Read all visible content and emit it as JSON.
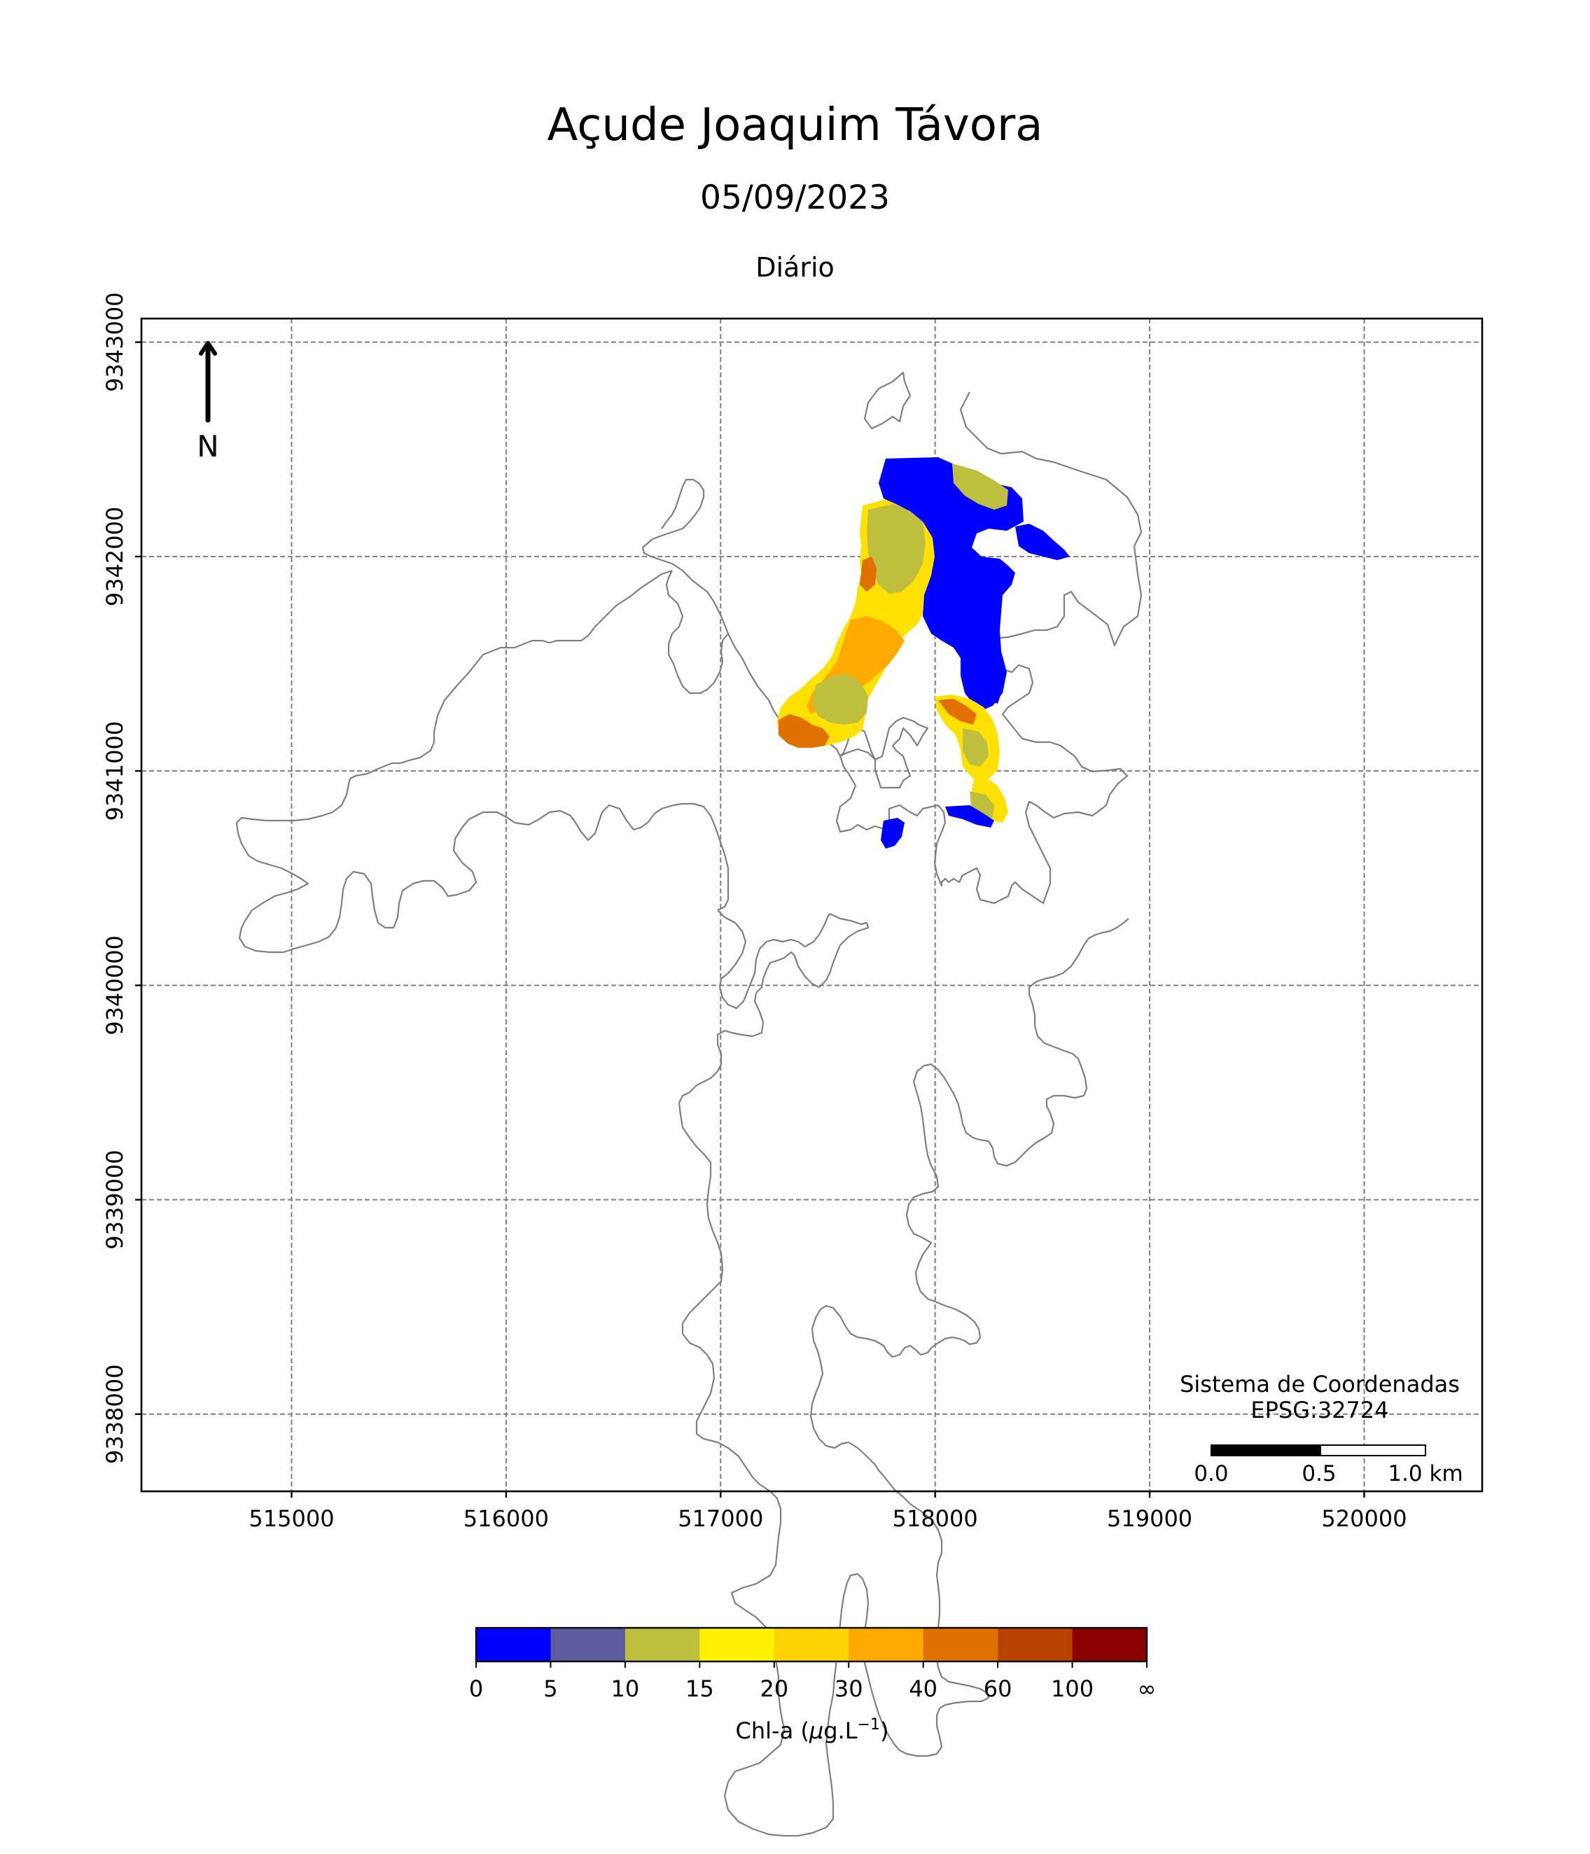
{
  "title": "Açude Joaquim Távora",
  "date": "05/09/2023",
  "period": "Diário",
  "north_label": "N",
  "crs": {
    "line1": "Sistema de Coordenadas",
    "line2": "EPSG:32724"
  },
  "scalebar": {
    "labels": [
      "0.0",
      "0.5",
      "1.0 km"
    ],
    "length_km": 1.0
  },
  "map": {
    "x_ticks": [
      515000,
      516000,
      517000,
      518000,
      519000,
      520000
    ],
    "y_ticks": [
      9338000,
      9339000,
      9340000,
      9341000,
      9342000,
      9343000
    ],
    "x_range": [
      514300,
      520550
    ],
    "y_range": [
      9337640,
      9343110
    ],
    "grid": true,
    "colors": {
      "outline": "#7f7f7f",
      "grid": "#7f7f7f"
    }
  },
  "legend": {
    "label_main": "Chl-a (",
    "label_mu": "μ",
    "label_unit": "g.L",
    "label_exp": "−1",
    "label_close": ")",
    "ticks": [
      "0",
      "5",
      "10",
      "15",
      "20",
      "30",
      "40",
      "60",
      "100",
      "∞"
    ],
    "colors": [
      "#0000ff",
      "#5d5d9e",
      "#bfbf3f",
      "#fff200",
      "#ffd200",
      "#ffaa00",
      "#e07000",
      "#b84300",
      "#8b0000"
    ]
  }
}
